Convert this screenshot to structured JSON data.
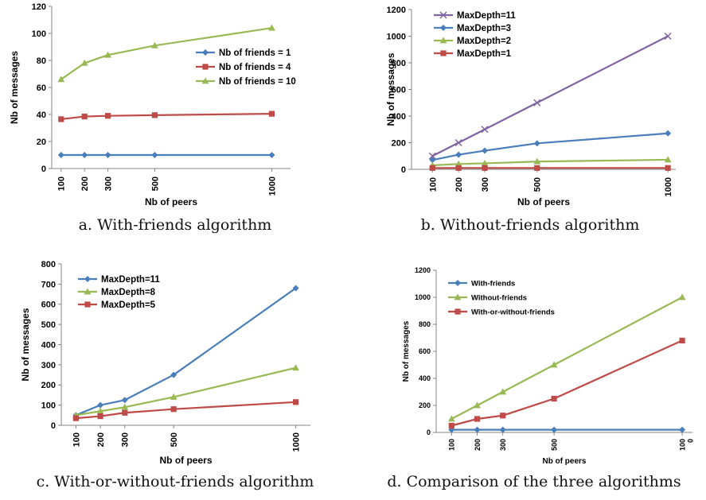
{
  "captions": {
    "a": "a. With-friends algorithm",
    "b": "b. Without-friends algorithm",
    "c": "c. With-or-without-friends algorithm",
    "d": "d. Comparison of the three algorithms"
  },
  "chart_data": [
    {
      "id": "a",
      "type": "line",
      "xlabel": "Nb of peers",
      "ylabel": "Nb of messages",
      "x": [
        100,
        200,
        300,
        500,
        1000
      ],
      "xtick_labels": [
        "100",
        "200",
        "300",
        "500",
        "1000"
      ],
      "ylim": [
        0,
        120
      ],
      "yticks": [
        0,
        20,
        40,
        60,
        80,
        100,
        120
      ],
      "grid": false,
      "legend": "right",
      "series": [
        {
          "name": "Nb of friends = 1",
          "color": "#4a7ebb",
          "marker": "diamond",
          "values": [
            10,
            10,
            10,
            10,
            10
          ]
        },
        {
          "name": "Nb of friends = 4",
          "color": "#be4b48",
          "marker": "square",
          "values": [
            36.5,
            38.5,
            39,
            39.5,
            40.5
          ]
        },
        {
          "name": "Nb of friends = 10",
          "color": "#98b954",
          "marker": "triangle",
          "values": [
            66,
            78,
            84,
            91,
            104
          ]
        }
      ]
    },
    {
      "id": "b",
      "type": "line",
      "xlabel": "Nb of peers",
      "ylabel": "Nb of messages",
      "x": [
        100,
        200,
        300,
        500,
        1000
      ],
      "xtick_labels": [
        "100",
        "200",
        "300",
        "500",
        "1000"
      ],
      "ylim": [
        0,
        1200
      ],
      "yticks": [
        0,
        200,
        400,
        600,
        800,
        1000,
        1200
      ],
      "grid": false,
      "legend": "top-left",
      "series": [
        {
          "name": "MaxDepth=11",
          "color": "#8064a2",
          "marker": "x",
          "values": [
            100,
            200,
            300,
            500,
            1000
          ]
        },
        {
          "name": "MaxDepth=3",
          "color": "#4a7ebb",
          "marker": "diamond",
          "values": [
            70,
            110,
            140,
            195,
            270
          ]
        },
        {
          "name": "MaxDepth=2",
          "color": "#98b954",
          "marker": "triangle",
          "values": [
            30,
            40,
            45,
            58,
            72
          ]
        },
        {
          "name": "MaxDepth=1",
          "color": "#be4b48",
          "marker": "square",
          "values": [
            10,
            10,
            10,
            10,
            10
          ]
        }
      ]
    },
    {
      "id": "c",
      "type": "line",
      "xlabel": "Nb of peers",
      "ylabel": "Nb of messages",
      "x": [
        100,
        200,
        300,
        500,
        1000
      ],
      "xtick_labels": [
        "100",
        "200",
        "300",
        "500",
        "1000"
      ],
      "ylim": [
        0,
        800
      ],
      "yticks": [
        0,
        100,
        200,
        300,
        400,
        500,
        600,
        700,
        800
      ],
      "grid": false,
      "legend": "top-left",
      "series": [
        {
          "name": "MaxDepth=11",
          "color": "#4a7ebb",
          "marker": "diamond",
          "values": [
            50,
            100,
            125,
            250,
            680
          ]
        },
        {
          "name": "MaxDepth=8",
          "color": "#98b954",
          "marker": "triangle",
          "values": [
            50,
            70,
            90,
            140,
            285
          ]
        },
        {
          "name": "MaxDepth=5",
          "color": "#be4b48",
          "marker": "square",
          "values": [
            35,
            45,
            62,
            80,
            115
          ]
        }
      ]
    },
    {
      "id": "d",
      "type": "line",
      "xlabel": "Nb of peers",
      "ylabel": "Nb of messages",
      "x": [
        100,
        200,
        300,
        500,
        1000
      ],
      "xtick_labels": [
        "100",
        "200",
        "300",
        "500",
        "100\n0"
      ],
      "ylim": [
        0,
        1200
      ],
      "yticks": [
        0,
        200,
        400,
        600,
        800,
        1000,
        1200
      ],
      "grid": false,
      "legend": "top-left",
      "series": [
        {
          "name": "With-friends",
          "color": "#4a7ebb",
          "marker": "diamond",
          "values": [
            20,
            20,
            20,
            20,
            20
          ]
        },
        {
          "name": "Without-friends",
          "color": "#98b954",
          "marker": "triangle",
          "values": [
            100,
            200,
            300,
            500,
            1000
          ]
        },
        {
          "name": "With-or-without-friends",
          "color": "#be4b48",
          "marker": "square",
          "values": [
            50,
            100,
            125,
            250,
            680
          ]
        }
      ]
    }
  ]
}
